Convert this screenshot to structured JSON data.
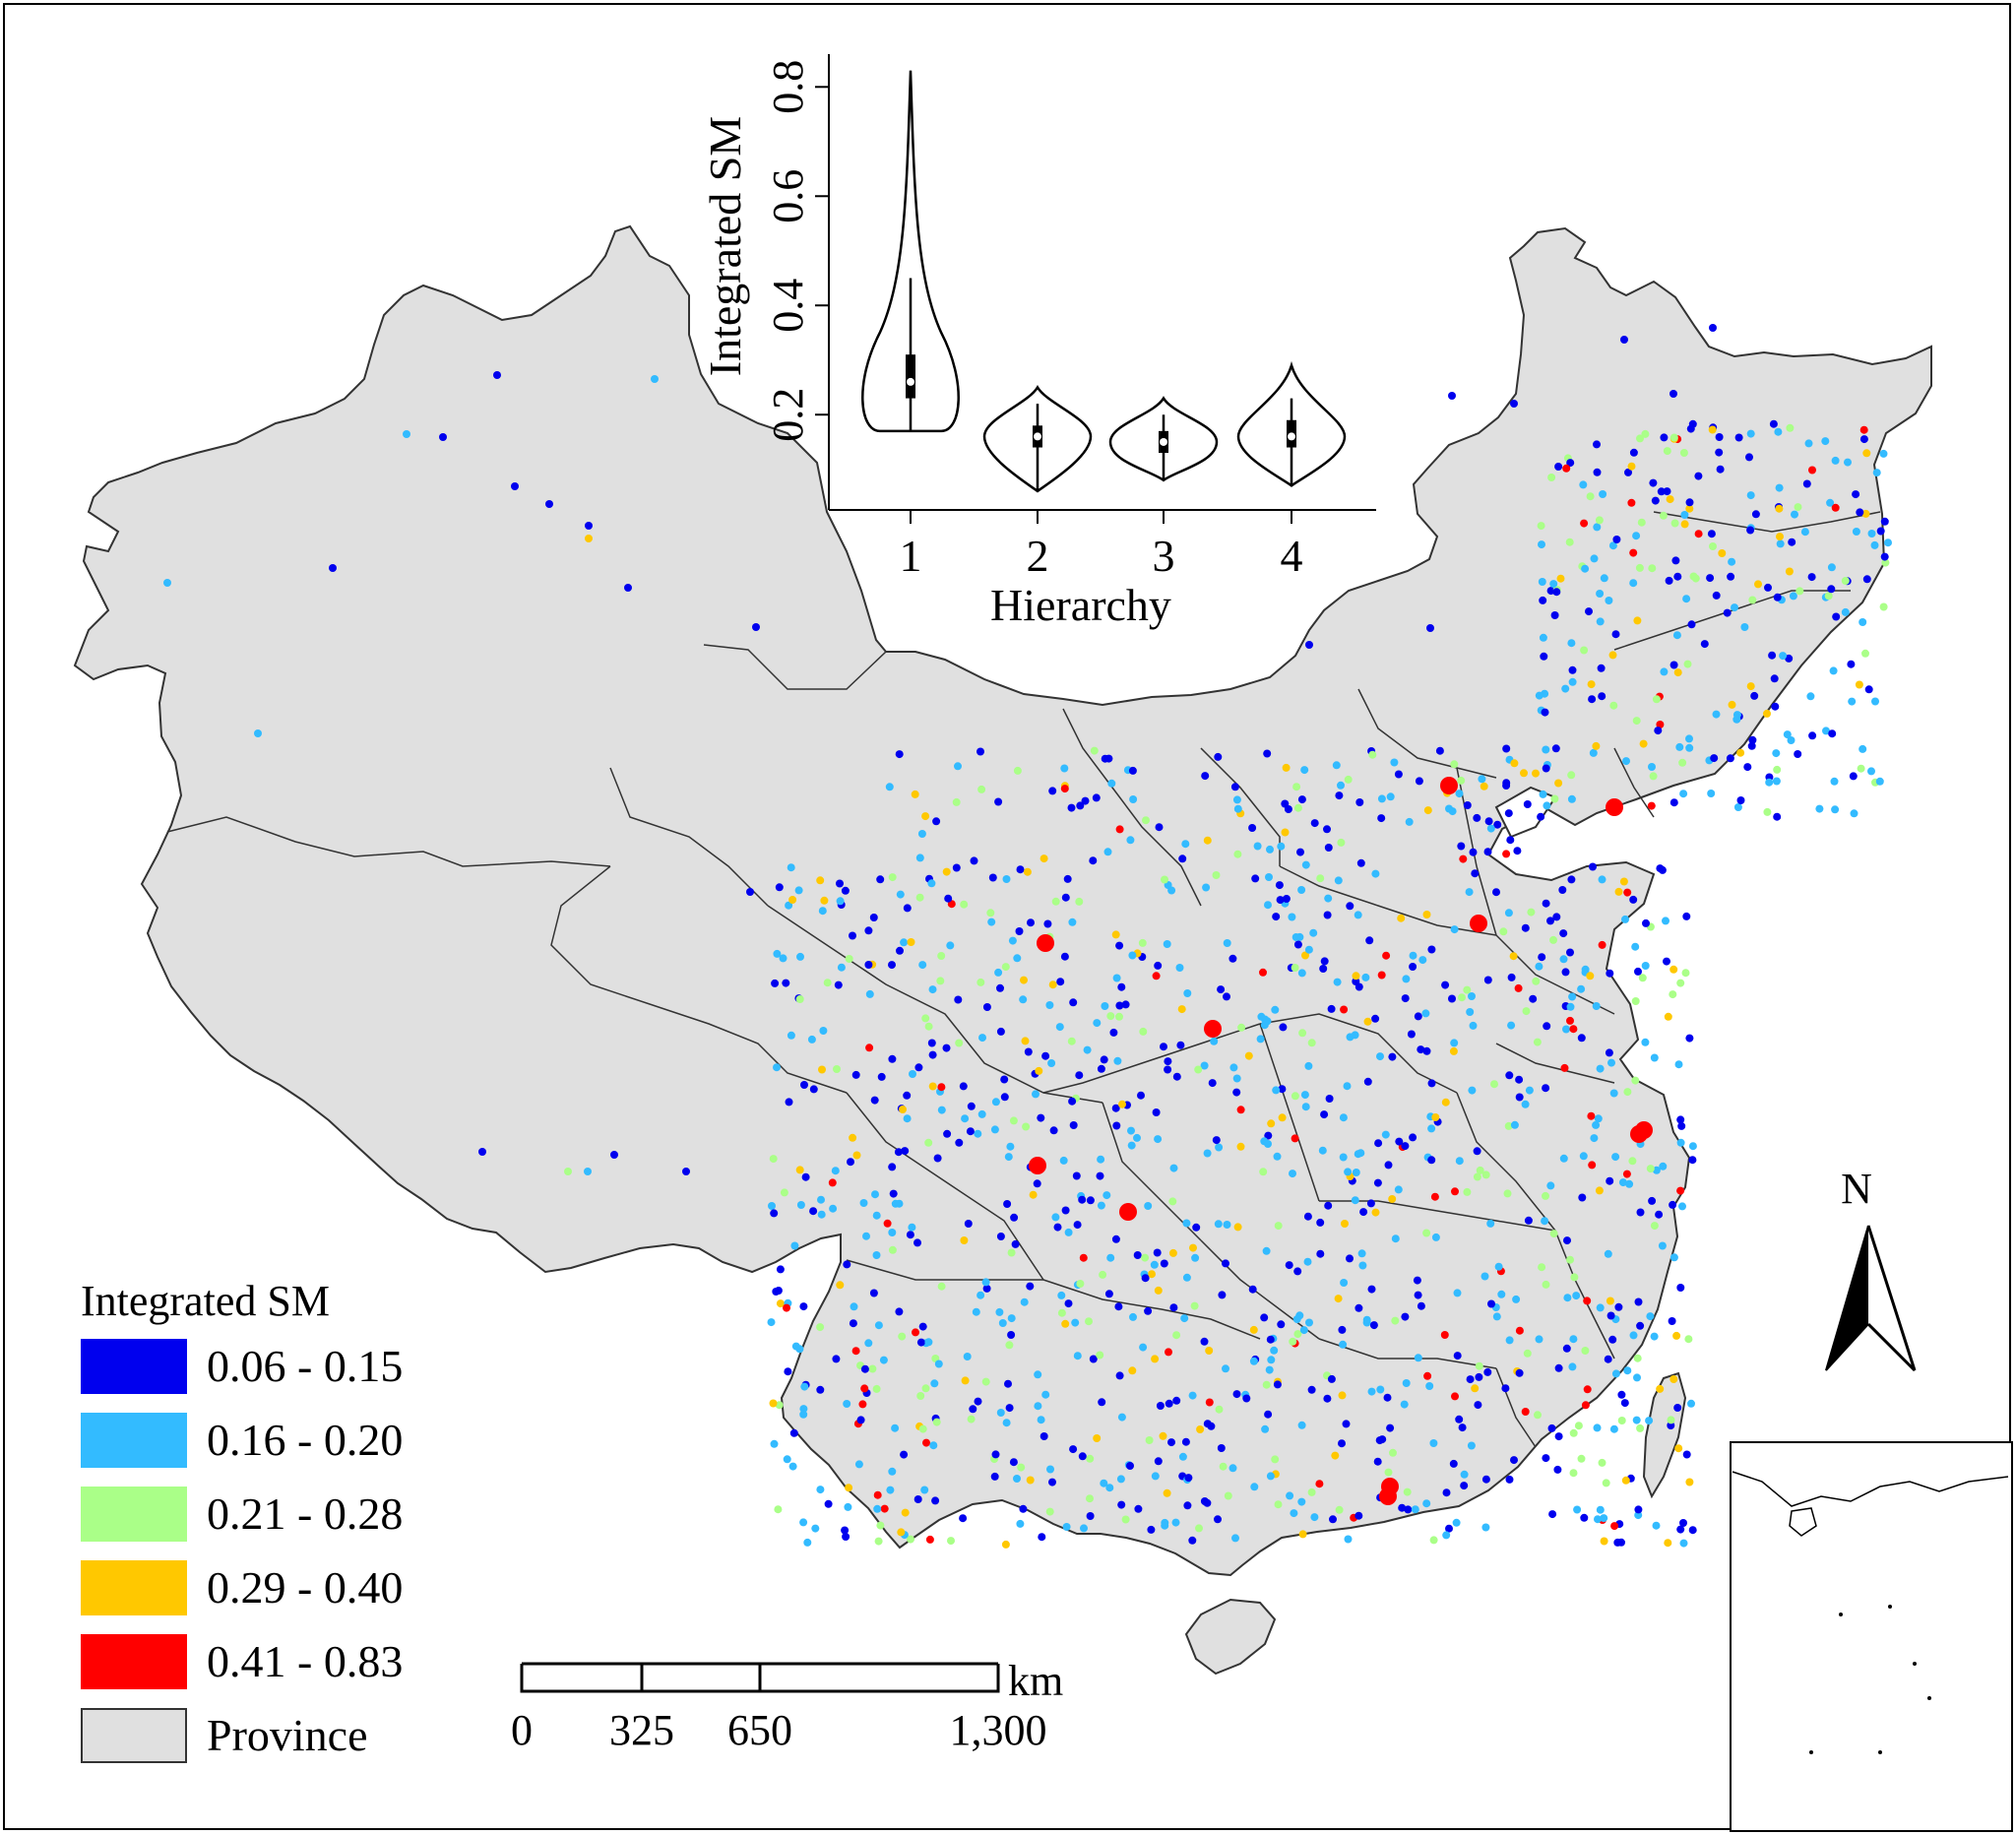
{
  "violin_inset": {
    "ylabel": "Integrated SM",
    "xlabel": "Hierarchy",
    "y_ticks": [
      "0.2",
      "0.4",
      "0.6",
      "0.8"
    ],
    "x_ticks": [
      "1",
      "2",
      "3",
      "4"
    ]
  },
  "chart_data": {
    "type": "violin",
    "xlabel": "Hierarchy",
    "ylabel": "Integrated SM",
    "categories": [
      "1",
      "2",
      "3",
      "4"
    ],
    "ylim": [
      0.04,
      0.86
    ],
    "groups": [
      {
        "category": "1",
        "min": 0.17,
        "q1": 0.23,
        "median": 0.26,
        "q3": 0.31,
        "whisker_high": 0.45,
        "max": 0.83
      },
      {
        "category": "2",
        "min": 0.06,
        "q1": 0.14,
        "median": 0.16,
        "q3": 0.18,
        "whisker_high": 0.22,
        "max": 0.25
      },
      {
        "category": "3",
        "min": 0.08,
        "q1": 0.13,
        "median": 0.15,
        "q3": 0.17,
        "whisker_high": 0.2,
        "max": 0.23
      },
      {
        "category": "4",
        "min": 0.07,
        "q1": 0.14,
        "median": 0.16,
        "q3": 0.19,
        "whisker_high": 0.23,
        "max": 0.29
      }
    ]
  },
  "legend": {
    "title": "Integrated SM",
    "items": [
      {
        "label": "0.06 - 0.15",
        "color": "#0000ee"
      },
      {
        "label": "0.16 - 0.20",
        "color": "#33bbff"
      },
      {
        "label": "0.21 - 0.28",
        "color": "#aaff88"
      },
      {
        "label": "0.29 - 0.40",
        "color": "#ffc800"
      },
      {
        "label": "0.41 - 0.83",
        "color": "#ff0000"
      },
      {
        "label": "Province",
        "color": "#e0e0e0"
      }
    ]
  },
  "scale_bar": {
    "unit": "km",
    "ticks": [
      "0",
      "325",
      "650",
      "1,300"
    ]
  },
  "north_arrow": {
    "label": "N"
  },
  "colors": {
    "province_fill": "#e0e0e0",
    "boundary": "#333333"
  }
}
